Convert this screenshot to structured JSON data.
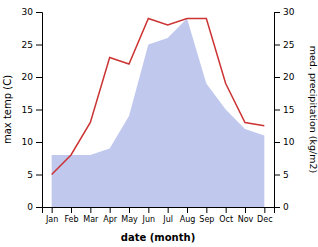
{
  "chart_data": {
    "type": "line",
    "xlabel": "date (month)",
    "ylabel": "max temp (C)",
    "y2label": "med. precipitation (kg/m2)",
    "categories": [
      "Jan",
      "Feb",
      "Mar",
      "Apr",
      "May",
      "Jun",
      "Jul",
      "Aug",
      "Sep",
      "Oct",
      "Nov",
      "Dec"
    ],
    "series": [
      {
        "type": "area",
        "axis": "y2",
        "color": "#c0c8ee",
        "values": [
          8,
          8,
          8,
          9,
          14,
          25,
          26,
          29,
          19,
          15,
          12,
          11
        ]
      },
      {
        "type": "line",
        "color": "#cc3333",
        "values": [
          5,
          8,
          13,
          23,
          22,
          29,
          28,
          29,
          29,
          19,
          13,
          12.5
        ]
      }
    ],
    "ylim": [
      0,
      30
    ],
    "yticks": [
      0,
      5,
      10,
      15,
      20,
      25,
      30
    ],
    "y2lim": [
      0,
      30
    ],
    "y2ticks": [
      0,
      5,
      10,
      15,
      20,
      25,
      30
    ]
  }
}
